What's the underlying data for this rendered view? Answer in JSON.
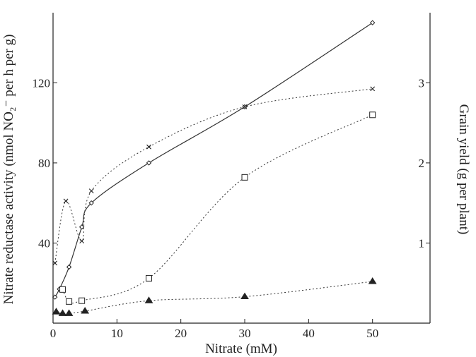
{
  "chart_data": {
    "type": "line",
    "xlabel": "Nitrate (mM)",
    "ylabel": "Nitrate reductase activity (nmol NO₂⁻ per h per g)",
    "y2label": "Grain yield (g per plant)",
    "xlim": [
      0,
      59
    ],
    "ylim": [
      0,
      155
    ],
    "y2lim": [
      0,
      3.875
    ],
    "xticks": [
      0,
      10,
      20,
      30,
      40,
      50
    ],
    "yticks": [
      40,
      80,
      120
    ],
    "y2ticks": [
      1,
      2,
      3
    ],
    "grid": false,
    "series": [
      {
        "marker": "diamond-small",
        "line": "solid",
        "axis": "left",
        "x": [
          0.3,
          1,
          2.5,
          4.5,
          6,
          15,
          30,
          50
        ],
        "y": [
          13,
          17,
          28,
          48,
          60,
          80,
          108,
          150
        ]
      },
      {
        "marker": "x",
        "line": "dotted",
        "axis": "left",
        "x": [
          0.3,
          2,
          4.5,
          6,
          15,
          30,
          50
        ],
        "y": [
          30,
          61,
          41,
          66,
          88,
          108,
          117
        ]
      },
      {
        "marker": "square",
        "line": "dotted",
        "axis": "right",
        "x": [
          1.5,
          2.5,
          4.5,
          15,
          30,
          50
        ],
        "y": [
          0.42,
          0.27,
          0.28,
          0.56,
          1.82,
          2.6
        ]
      },
      {
        "marker": "triangle",
        "line": "dotted",
        "axis": "right",
        "x": [
          0.5,
          1.5,
          2.5,
          5,
          15,
          30,
          50
        ],
        "y": [
          0.14,
          0.12,
          0.12,
          0.15,
          0.28,
          0.33,
          0.52
        ]
      }
    ]
  }
}
